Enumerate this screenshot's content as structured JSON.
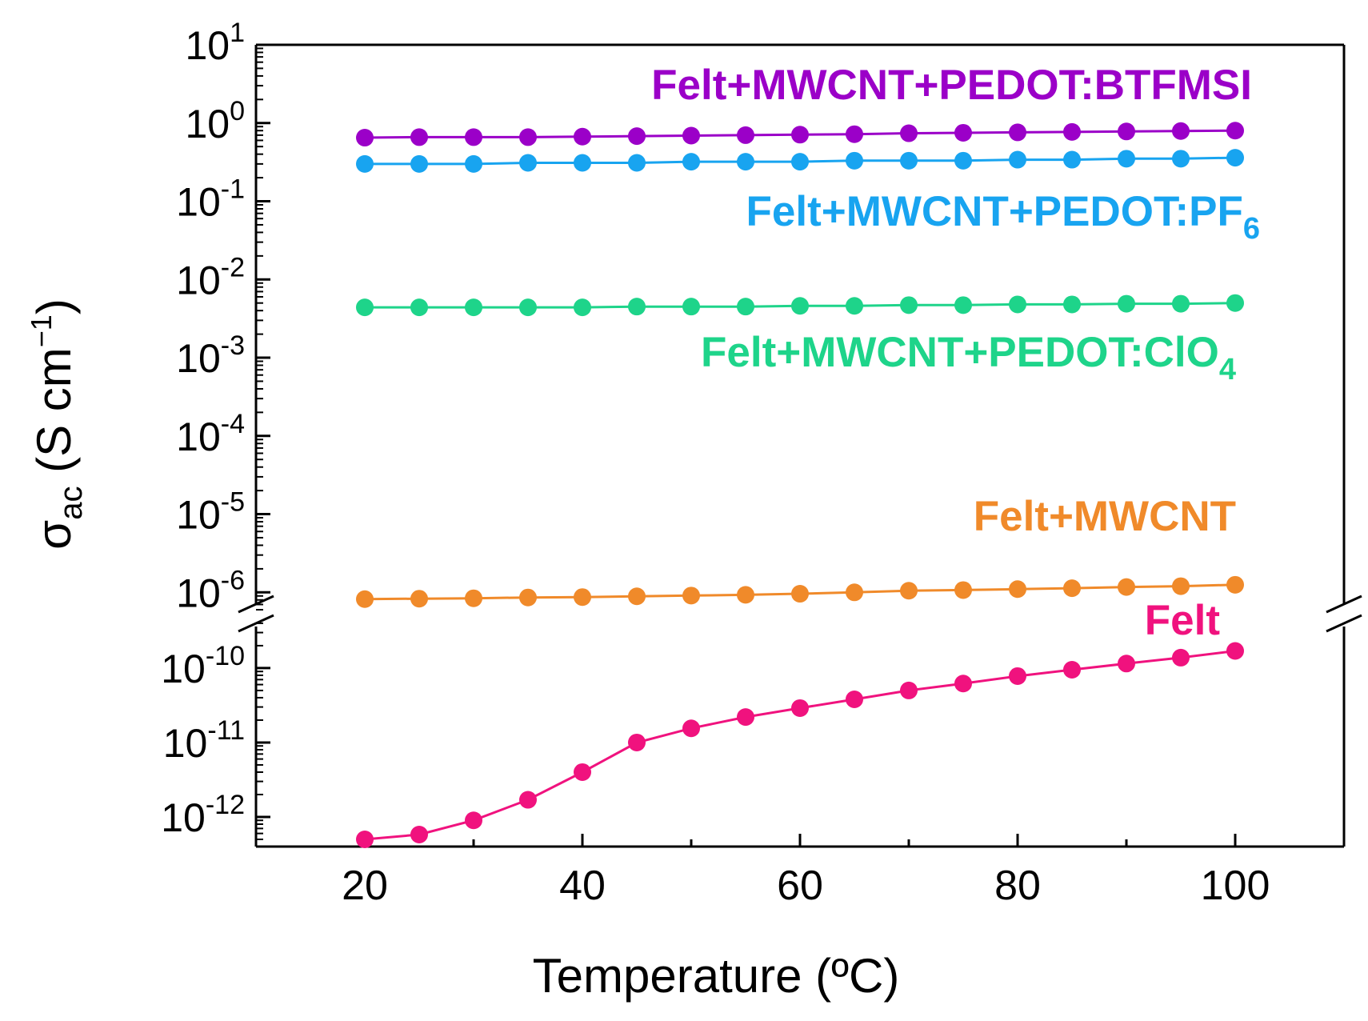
{
  "chart_data": {
    "type": "line",
    "title": "",
    "xlabel": "Temperature (ºC)",
    "ylabel": "σac (S cm⁻¹)",
    "ylabel_parts": {
      "symbol": "σ",
      "sub": "ac",
      "unit_main": " (S cm",
      "unit_sup": "−1",
      "unit_close": ")"
    },
    "xlim": [
      10,
      110
    ],
    "xticks": [
      20,
      40,
      60,
      80,
      100
    ],
    "xtick_labels": [
      "20",
      "40",
      "60",
      "80",
      "100"
    ],
    "y_scale": "log (broken axis)",
    "y_upper_ticks": [
      {
        "base": "10",
        "exp": "1",
        "value": 10
      },
      {
        "base": "10",
        "exp": "0",
        "value": 1
      },
      {
        "base": "10",
        "exp": "-1",
        "value": 0.1
      },
      {
        "base": "10",
        "exp": "-2",
        "value": 0.01
      },
      {
        "base": "10",
        "exp": "-3",
        "value": 0.001
      },
      {
        "base": "10",
        "exp": "-4",
        "value": 0.0001
      },
      {
        "base": "10",
        "exp": "-5",
        "value": 1e-05
      },
      {
        "base": "10",
        "exp": "-6",
        "value": 1e-06
      }
    ],
    "y_lower_ticks": [
      {
        "base": "10",
        "exp": "-10",
        "value": 1e-10
      },
      {
        "base": "10",
        "exp": "-11",
        "value": 1e-11
      },
      {
        "base": "10",
        "exp": "-12",
        "value": 1e-12
      }
    ],
    "y_upper_range": [
      6e-07,
      10
    ],
    "y_lower_range": [
      4e-13,
      4.3e-10
    ],
    "x": [
      20,
      25,
      30,
      35,
      40,
      45,
      50,
      55,
      60,
      65,
      70,
      75,
      80,
      85,
      90,
      95,
      100
    ],
    "series": [
      {
        "name": "Felt+MWCNT+PEDOT:BTFMSI",
        "label_main": "Felt+MWCNT+PEDOT:BTFMSI",
        "label_sub": "",
        "color": "#9b00c8",
        "values": [
          0.65,
          0.66,
          0.66,
          0.66,
          0.67,
          0.68,
          0.69,
          0.7,
          0.71,
          0.72,
          0.74,
          0.75,
          0.76,
          0.77,
          0.78,
          0.79,
          0.8
        ]
      },
      {
        "name": "Felt+MWCNT+PEDOT:PF6",
        "label_main": "Felt+MWCNT+PEDOT:PF",
        "label_sub": "6",
        "color": "#18a4f0",
        "values": [
          0.3,
          0.3,
          0.3,
          0.31,
          0.31,
          0.31,
          0.32,
          0.32,
          0.32,
          0.33,
          0.33,
          0.33,
          0.34,
          0.34,
          0.35,
          0.35,
          0.36
        ]
      },
      {
        "name": "Felt+MWCNT+PEDOT:ClO4",
        "label_main": "Felt+MWCNT+PEDOT:ClO",
        "label_sub": "4",
        "color": "#1ed48a",
        "values": [
          0.0044,
          0.0044,
          0.0044,
          0.0044,
          0.0044,
          0.0045,
          0.0045,
          0.0045,
          0.0046,
          0.0046,
          0.0047,
          0.0047,
          0.0048,
          0.0048,
          0.0049,
          0.0049,
          0.005
        ]
      },
      {
        "name": "Felt+MWCNT",
        "label_main": "Felt+MWCNT",
        "label_sub": "",
        "color": "#f08a2a",
        "values": [
          8.2e-07,
          8.3e-07,
          8.4e-07,
          8.6e-07,
          8.7e-07,
          8.9e-07,
          9.1e-07,
          9.3e-07,
          9.6e-07,
          1e-06,
          1.05e-06,
          1.07e-06,
          1.1e-06,
          1.13e-06,
          1.17e-06,
          1.2e-06,
          1.25e-06
        ]
      },
      {
        "name": "Felt",
        "label_main": "Felt",
        "label_sub": "",
        "color": "#f0127e",
        "values": [
          5e-13,
          5.8e-13,
          9e-13,
          1.7e-12,
          4e-12,
          1e-11,
          1.55e-11,
          2.2e-11,
          2.9e-11,
          3.8e-11,
          5e-11,
          6.2e-11,
          7.8e-11,
          9.5e-11,
          1.15e-10,
          1.38e-10,
          1.7e-10
        ]
      }
    ],
    "legend": "inline labels above each series"
  }
}
